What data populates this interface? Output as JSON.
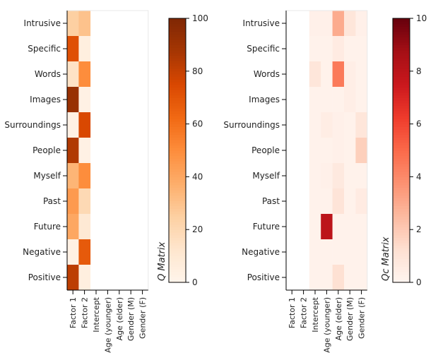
{
  "chart_data": [
    {
      "type": "heatmap",
      "rows": [
        "Intrusive",
        "Specific",
        "Words",
        "Images",
        "Surroundings",
        "People",
        "Myself",
        "Past",
        "Future",
        "Negative",
        "Positive"
      ],
      "columns": [
        "Factor 1",
        "Factor 2",
        "Intercept",
        "Age (younger)",
        "Age (elder)",
        "Gender (M)",
        "Gender (F)"
      ],
      "values": [
        [
          25,
          30,
          null,
          null,
          null,
          null,
          null
        ],
        [
          72,
          5,
          null,
          null,
          null,
          null,
          null
        ],
        [
          15,
          50,
          null,
          null,
          null,
          null,
          null
        ],
        [
          92,
          3,
          null,
          null,
          null,
          null,
          null
        ],
        [
          3,
          75,
          null,
          null,
          null,
          null,
          null
        ],
        [
          85,
          3,
          null,
          null,
          null,
          null,
          null
        ],
        [
          35,
          50,
          null,
          null,
          null,
          null,
          null
        ],
        [
          45,
          20,
          null,
          null,
          null,
          null,
          null
        ],
        [
          40,
          10,
          null,
          null,
          null,
          null,
          null
        ],
        [
          3,
          68,
          null,
          null,
          null,
          null,
          null
        ],
        [
          82,
          5,
          null,
          null,
          null,
          null,
          null
        ]
      ],
      "colormap": "Oranges",
      "colorbar_label": "Q Matrix",
      "colorbar_range": [
        0,
        100
      ],
      "colorbar_ticks": [
        "0",
        "20",
        "40",
        "60",
        "80",
        "100"
      ]
    },
    {
      "type": "heatmap",
      "rows": [
        "Intrusive",
        "Specific",
        "Words",
        "Images",
        "Surroundings",
        "People",
        "Myself",
        "Past",
        "Future",
        "Negative",
        "Positive"
      ],
      "columns": [
        "Factor 1",
        "Factor 2",
        "Intercept",
        "Age (younger)",
        "Age (elder)",
        "Gender (M)",
        "Gender (F)"
      ],
      "values": [
        [
          null,
          null,
          0.3,
          0.3,
          3.0,
          0.9,
          0.3
        ],
        [
          null,
          null,
          0.2,
          0.2,
          0.6,
          0.2,
          0.2
        ],
        [
          null,
          null,
          0.9,
          0.2,
          4.5,
          0.4,
          0.2
        ],
        [
          null,
          null,
          0.2,
          0.2,
          0.2,
          0.4,
          0.2
        ],
        [
          null,
          null,
          0.2,
          0.5,
          0.3,
          0.2,
          0.9
        ],
        [
          null,
          null,
          0.2,
          0.2,
          0.3,
          0.2,
          1.8
        ],
        [
          null,
          null,
          0.2,
          0.3,
          0.7,
          0.2,
          0.2
        ],
        [
          null,
          null,
          0.2,
          0.2,
          1.0,
          0.2,
          0.6
        ],
        [
          null,
          null,
          0.2,
          8.0,
          0.2,
          0.2,
          0.2
        ],
        [
          null,
          null,
          0.2,
          0.2,
          0.2,
          0.2,
          0.2
        ],
        [
          null,
          null,
          0.2,
          0.2,
          1.2,
          0.2,
          0.2
        ]
      ],
      "colormap": "Reds",
      "colorbar_label": "Qc Matrix",
      "colorbar_range": [
        0,
        10
      ],
      "colorbar_ticks": [
        "0",
        "2",
        "4",
        "6",
        "8",
        "10"
      ]
    }
  ]
}
